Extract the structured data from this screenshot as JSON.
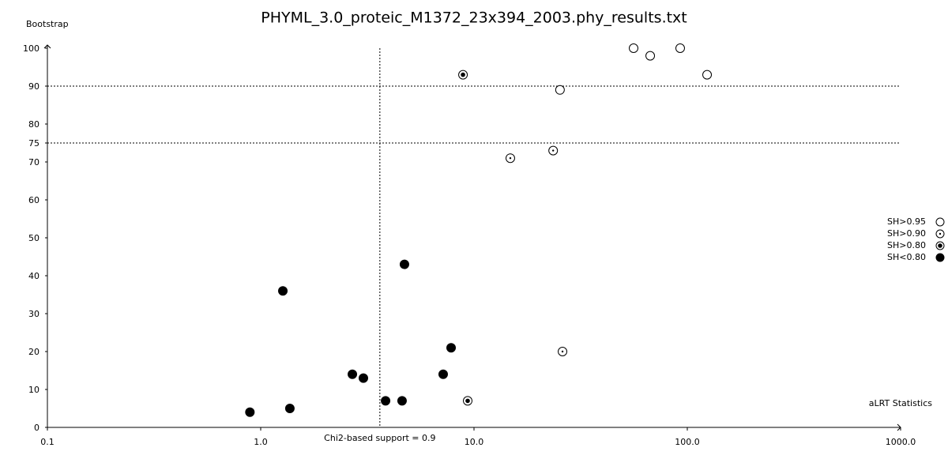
{
  "chart_data": {
    "type": "scatter",
    "title": "PHYML_3.0_proteic_M1372_23x394_2003.phy_results.txt",
    "y_label": "Bootstrap",
    "x_label": "aLRT Statistics",
    "x_scale": "log",
    "xlim": [
      0.1,
      1000
    ],
    "xticks": [
      0.1,
      {
        "value": 1,
        "label": "1.0"
      },
      {
        "value": 10,
        "label": "10.0"
      },
      {
        "value": 100,
        "label": "100.0"
      },
      {
        "value": 1000,
        "label": "1000.0"
      }
    ],
    "ylim": [
      0,
      100
    ],
    "yticks": [
      0,
      10,
      20,
      30,
      40,
      50,
      60,
      70,
      75,
      80,
      90,
      100
    ],
    "reference_lines": {
      "y": [
        90,
        75
      ],
      "x": 3.62,
      "x_label": "Chi2-based support = 0.9"
    },
    "legend": "right",
    "series": [
      {
        "name": "SH>0.95",
        "color": "#000000",
        "marker": "open",
        "x": [
          25.3,
          56.0,
          67.0,
          92.6,
          123.8
        ],
        "values": [
          89,
          100,
          98,
          100,
          93
        ]
      },
      {
        "name": "SH>0.90",
        "color": "#000000",
        "marker": "dot",
        "x": [
          14.8,
          23.5,
          26.0
        ],
        "values": [
          71,
          73,
          20
        ]
      },
      {
        "name": "SH>0.80",
        "color": "#000000",
        "marker": "bullseye",
        "x": [
          8.88,
          9.34
        ],
        "values": [
          93,
          7
        ]
      },
      {
        "name": "SH<0.80",
        "color": "#000000",
        "marker": "filled",
        "x": [
          0.89,
          1.37,
          1.27,
          2.69,
          3.03,
          3.85,
          4.6,
          4.72,
          7.17,
          7.81
        ],
        "values": [
          4,
          5,
          36,
          14,
          13,
          7,
          7,
          43,
          14,
          21
        ]
      }
    ]
  }
}
